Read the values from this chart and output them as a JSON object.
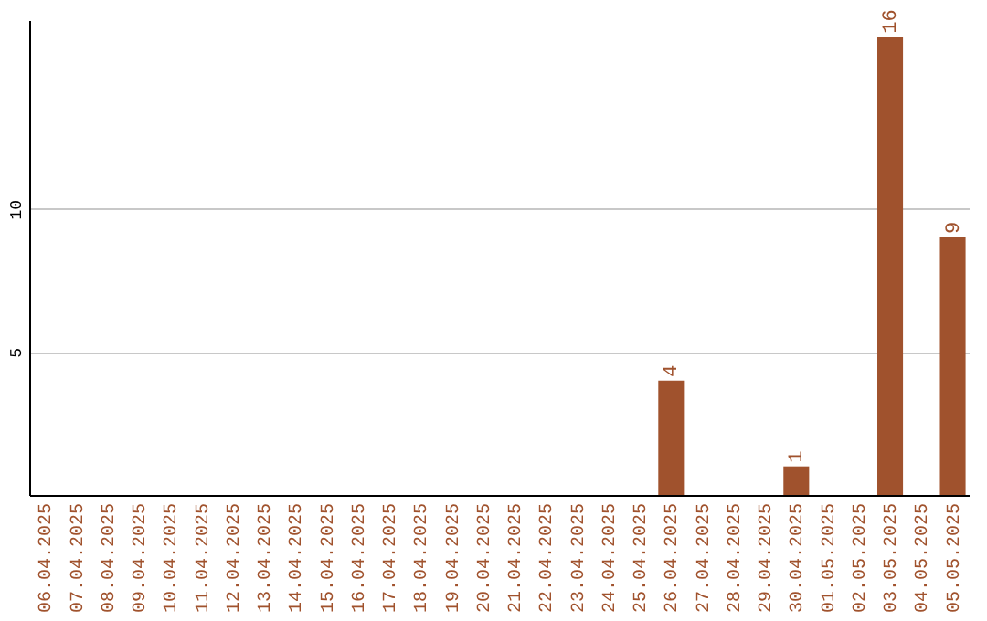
{
  "chart_data": {
    "type": "bar",
    "categories": [
      "06.04.2025",
      "07.04.2025",
      "08.04.2025",
      "09.04.2025",
      "10.04.2025",
      "11.04.2025",
      "12.04.2025",
      "13.04.2025",
      "14.04.2025",
      "15.04.2025",
      "16.04.2025",
      "17.04.2025",
      "18.04.2025",
      "19.04.2025",
      "20.04.2025",
      "21.04.2025",
      "22.04.2025",
      "23.04.2025",
      "24.04.2025",
      "25.04.2025",
      "26.04.2025",
      "27.04.2025",
      "28.04.2025",
      "29.04.2025",
      "30.04.2025",
      "01.05.2025",
      "02.05.2025",
      "03.05.2025",
      "04.05.2025",
      "05.05.2025"
    ],
    "values": [
      0,
      0,
      0,
      0,
      0,
      0,
      0,
      0,
      0,
      0,
      0,
      0,
      0,
      0,
      0,
      0,
      0,
      0,
      0,
      0,
      4,
      0,
      0,
      0,
      1,
      0,
      0,
      16,
      0,
      9
    ],
    "value_labels": [
      null,
      null,
      null,
      null,
      null,
      null,
      null,
      null,
      null,
      null,
      null,
      null,
      null,
      null,
      null,
      null,
      null,
      null,
      null,
      null,
      "4",
      null,
      null,
      null,
      "1",
      null,
      null,
      "16",
      null,
      "9"
    ],
    "color": "#a0522d",
    "ylim": [
      0,
      16.6
    ],
    "yticks": [
      5,
      10
    ],
    "grid": "y"
  }
}
